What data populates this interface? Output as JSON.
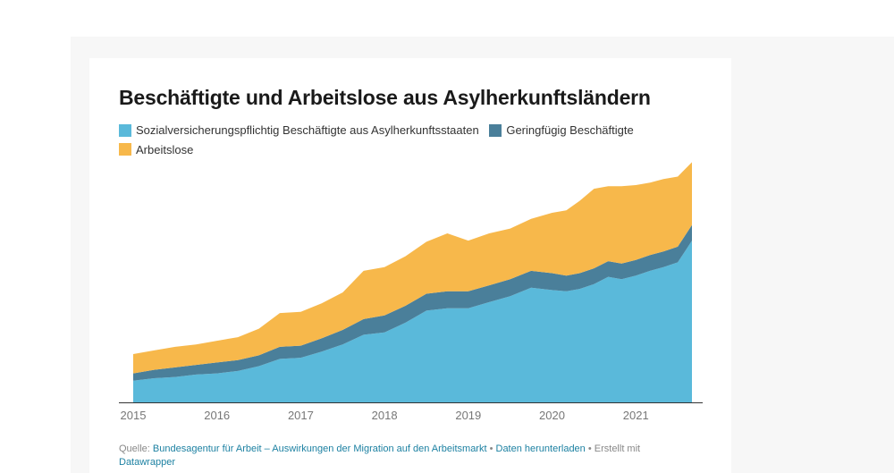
{
  "title": "Beschäftigte und Arbeitslose aus Asylherkunftsländern",
  "legend": [
    {
      "label": "Sozialversicherungspflichtig Beschäftigte aus Asylherkunftsstaaten",
      "color": "#5ab9da"
    },
    {
      "label": "Geringfügig Beschäftigte",
      "color": "#4a7f9a"
    },
    {
      "label": "Arbeitslose",
      "color": "#f7b84b"
    }
  ],
  "source": {
    "prefix": "Quelle: ",
    "link1": "Bundesagentur für Arbeit – Auswirkungen der Migration auf den Arbeitsmarkt",
    "sep1": " • ",
    "link2": "Daten herunterladen",
    "suffix": " • Erstellt mit ",
    "link3": "Datawrapper"
  },
  "chart_data": {
    "type": "area",
    "stacked": true,
    "title": "Beschäftigte und Arbeitslose aus Asylherkunftsländern",
    "xlabel": "",
    "ylabel": "",
    "x_ticks": [
      "2015",
      "2016",
      "2017",
      "2018",
      "2019",
      "2020",
      "2021"
    ],
    "x_tick_values": [
      2015,
      2016,
      2017,
      2018,
      2019,
      2020,
      2021
    ],
    "xlim": [
      2015,
      2021.67
    ],
    "ylim": [
      0,
      100
    ],
    "grid": false,
    "x": [
      2015.0,
      2015.25,
      2015.5,
      2015.75,
      2016.0,
      2016.25,
      2016.5,
      2016.75,
      2017.0,
      2017.25,
      2017.5,
      2017.75,
      2018.0,
      2018.25,
      2018.5,
      2018.75,
      2019.0,
      2019.25,
      2019.5,
      2019.75,
      2020.0,
      2020.17,
      2020.33,
      2020.5,
      2020.67,
      2020.83,
      2021.0,
      2021.17,
      2021.33,
      2021.5,
      2021.67
    ],
    "series": [
      {
        "name": "Sozialversicherungspflichtig Beschäftigte aus Asylherkunftsstaaten",
        "color": "#5ab9da",
        "values": [
          9,
          10,
          10.5,
          11.5,
          12,
          13,
          15,
          18,
          18.5,
          21,
          24,
          28,
          29,
          33,
          38,
          39,
          39,
          41.5,
          44,
          47.5,
          46.5,
          46,
          47,
          49,
          52,
          51,
          52.5,
          54.5,
          56,
          58,
          67
        ]
      },
      {
        "name": "Geringfügig Beschäftigte",
        "color": "#4a7f9a",
        "values": [
          3,
          3.5,
          4,
          4,
          4.5,
          4.5,
          4.5,
          5,
          5,
          5.5,
          6,
          6.5,
          7,
          7,
          7,
          7,
          7,
          7,
          7,
          7,
          7,
          6.5,
          6.5,
          6.5,
          6.5,
          6.5,
          6.5,
          6.5,
          6.5,
          6.5,
          6.5
        ]
      },
      {
        "name": "Arbeitslose",
        "color": "#f7b84b",
        "values": [
          8,
          8,
          8.5,
          8.5,
          9,
          9.5,
          11,
          14,
          14,
          14.5,
          15.5,
          20,
          20,
          20.5,
          21.5,
          24,
          21,
          21.5,
          21,
          21.5,
          25,
          27,
          30,
          33,
          31,
          32,
          31,
          30,
          30,
          29,
          26
        ]
      }
    ]
  }
}
